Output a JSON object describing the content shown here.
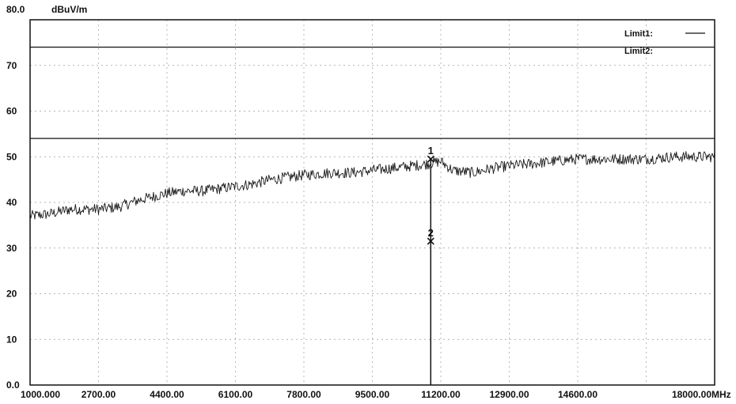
{
  "chart_data": {
    "type": "line",
    "y_unit": "dBuV/m",
    "x_unit": "MHz",
    "xlim": [
      1000,
      18000
    ],
    "ylim": [
      0,
      80
    ],
    "y_ticks": [
      {
        "value": 80,
        "label": "80.0"
      },
      {
        "value": 70,
        "label": "70"
      },
      {
        "value": 60,
        "label": "60"
      },
      {
        "value": 50,
        "label": "50"
      },
      {
        "value": 40,
        "label": "40"
      },
      {
        "value": 30,
        "label": "30"
      },
      {
        "value": 20,
        "label": "20"
      },
      {
        "value": 10,
        "label": "10"
      },
      {
        "value": 0,
        "label": "0.0"
      }
    ],
    "x_ticks": [
      {
        "value": 1000,
        "label": "1000.000"
      },
      {
        "value": 2700,
        "label": "2700.00"
      },
      {
        "value": 4400,
        "label": "4400.00"
      },
      {
        "value": 6100,
        "label": "6100.00"
      },
      {
        "value": 7800,
        "label": "7800.00"
      },
      {
        "value": 9500,
        "label": "9500.00"
      },
      {
        "value": 11200,
        "label": "11200.00"
      },
      {
        "value": 12900,
        "label": "12900.00"
      },
      {
        "value": 14600,
        "label": "14600.00"
      },
      {
        "value": 16300,
        "label": ""
      },
      {
        "value": 18000,
        "label": "18000.00"
      }
    ],
    "grid": true,
    "legend_position": "top-right",
    "limits": [
      {
        "name": "Limit1:",
        "value": 74
      },
      {
        "name": "Limit2:",
        "value": 54
      }
    ],
    "series": [
      {
        "x": [
          1000,
          1500,
          2000,
          2700,
          3200,
          3700,
          4400,
          4800,
          5300,
          6100,
          6500,
          7000,
          7800,
          8500,
          9000,
          9500,
          10000,
          10500,
          10900,
          11200,
          11500,
          12000,
          12500,
          12900,
          13500,
          14000,
          14600,
          15200,
          15700,
          16300,
          17000,
          17500,
          18000
        ],
        "values": [
          37,
          37.5,
          38.5,
          38.5,
          39,
          40.5,
          42,
          42.5,
          42.5,
          43.5,
          44,
          45,
          46,
          46.5,
          46.5,
          47,
          47.5,
          48,
          48.5,
          49,
          47,
          46.5,
          47.5,
          48,
          48.5,
          49,
          49.5,
          49.5,
          49.5,
          49.5,
          50,
          50,
          50
        ]
      }
    ],
    "markers": [
      {
        "label": "1",
        "x": 10950,
        "y": 49.5
      },
      {
        "label": "2",
        "x": 10950,
        "y": 31.5
      }
    ]
  }
}
